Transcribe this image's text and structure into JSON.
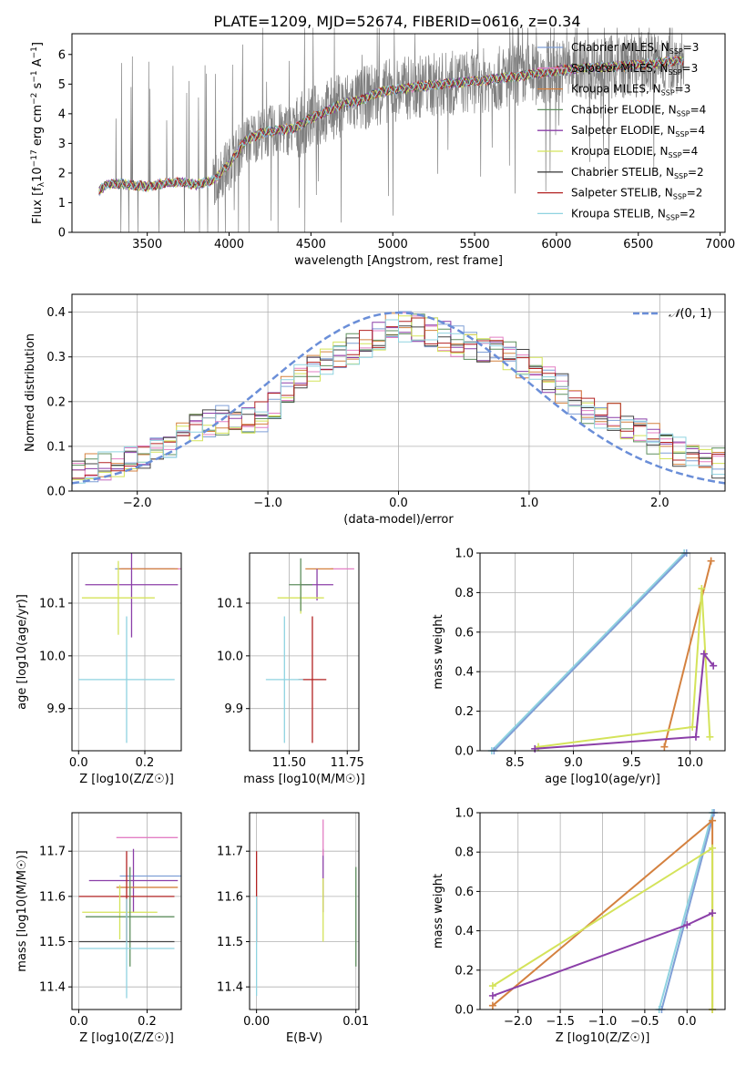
{
  "figure": {
    "title": "PLATE=1209, MJD=52674, FIBERID=0616, z=0.34"
  },
  "chart_data": [
    {
      "id": "spectrum",
      "type": "line",
      "xlabel": "wavelength [Angstrom, rest frame]",
      "ylabel": "Flux [f_λ 10^-17 erg cm^-2 s^-1 A^-1]",
      "xlim": [
        3040,
        7030
      ],
      "ylim": [
        0,
        6.7
      ],
      "xticks": [
        3500,
        4000,
        4500,
        5000,
        5500,
        6000,
        6500,
        7000
      ],
      "yticks": [
        0,
        1,
        2,
        3,
        4,
        5,
        6
      ],
      "grid": false,
      "legend_position": "top-right",
      "data_wavelength_range": [
        3205,
        6780
      ],
      "continuum": {
        "x": [
          3205,
          3250,
          3300,
          3400,
          3500,
          3600,
          3700,
          3800,
          3900,
          4000,
          4100,
          4200,
          4300,
          4400,
          4500,
          4600,
          4700,
          4800,
          4900,
          5000,
          5200,
          5400,
          5600,
          5800,
          6000,
          6200,
          6400,
          6600,
          6780
        ],
        "y": [
          1.4,
          1.6,
          1.65,
          1.6,
          1.55,
          1.65,
          1.7,
          1.6,
          1.75,
          2.3,
          3.1,
          3.35,
          3.45,
          3.5,
          3.85,
          4.1,
          4.35,
          4.45,
          4.7,
          4.8,
          4.95,
          5.05,
          5.15,
          5.3,
          5.45,
          5.55,
          5.6,
          5.7,
          5.8
        ]
      },
      "series": [
        {
          "name": "Chabrier MILES, N_SSP=3",
          "color": "#7f9fd6"
        },
        {
          "name": "Salpeter MILES, N_SSP=3",
          "color": "#e37fc4"
        },
        {
          "name": "Kroupa MILES, N_SSP=3",
          "color": "#d4813f"
        },
        {
          "name": "Chabrier ELODIE, N_SSP=4",
          "color": "#5f8f5f"
        },
        {
          "name": "Salpeter ELODIE, N_SSP=4",
          "color": "#8b3fa8"
        },
        {
          "name": "Kroupa ELODIE, N_SSP=4",
          "color": "#d4e35a"
        },
        {
          "name": "Chabrier STELIB, N_SSP=2",
          "color": "#444444"
        },
        {
          "name": "Salpeter STELIB, N_SSP=2",
          "color": "#b22222"
        },
        {
          "name": "Kroupa STELIB, N_SSP=2",
          "color": "#8fd3e0"
        }
      ],
      "legend": [
        {
          "label": "Chabrier MILES, N",
          "sub": "SSP",
          "tail": "=3"
        },
        {
          "label": "Salpeter MILES, N",
          "sub": "SSP",
          "tail": "=3"
        },
        {
          "label": "Kroupa MILES, N",
          "sub": "SSP",
          "tail": "=3"
        },
        {
          "label": "Chabrier ELODIE, N",
          "sub": "SSP",
          "tail": "=4"
        },
        {
          "label": "Salpeter ELODIE, N",
          "sub": "SSP",
          "tail": "=4"
        },
        {
          "label": "Kroupa ELODIE, N",
          "sub": "SSP",
          "tail": "=4"
        },
        {
          "label": "Chabrier STELIB, N",
          "sub": "SSP",
          "tail": "=2"
        },
        {
          "label": "Salpeter STELIB, N",
          "sub": "SSP",
          "tail": "=2"
        },
        {
          "label": "Kroupa STELIB, N",
          "sub": "SSP",
          "tail": "=2"
        }
      ]
    },
    {
      "id": "residuals",
      "type": "line",
      "xlabel": "(data-model)/error",
      "ylabel": "Normed distribution",
      "xlim": [
        -2.5,
        2.5
      ],
      "ylim": [
        0,
        0.44
      ],
      "xticks": [
        -2,
        -1,
        0,
        1,
        2
      ],
      "yticks": [
        0.0,
        0.1,
        0.2,
        0.3,
        0.4
      ],
      "grid": true,
      "legend_position": "top-right",
      "legend_label": "N(0,1)",
      "normal_curve_color": "#6a8ed8",
      "bin_width": 0.1,
      "histogram_envelope": {
        "x": [
          -2.5,
          -2.2,
          -2.0,
          -1.8,
          -1.6,
          -1.4,
          -1.2,
          -1.0,
          -0.8,
          -0.6,
          -0.4,
          -0.2,
          0.0,
          0.2,
          0.4,
          0.6,
          0.8,
          1.0,
          1.2,
          1.4,
          1.6,
          1.8,
          2.0,
          2.2,
          2.5
        ],
        "y": [
          0.04,
          0.06,
          0.07,
          0.1,
          0.13,
          0.16,
          0.16,
          0.17,
          0.24,
          0.28,
          0.31,
          0.34,
          0.37,
          0.36,
          0.34,
          0.32,
          0.31,
          0.28,
          0.24,
          0.19,
          0.17,
          0.14,
          0.11,
          0.08,
          0.06
        ]
      }
    },
    {
      "id": "age-vs-Z",
      "type": "scatter",
      "xlabel": "Z [log10(Z/Z☉)]",
      "ylabel": "age [log10(age/yr)]",
      "xlim": [
        -0.02,
        0.31
      ],
      "ylim": [
        9.82,
        10.195
      ],
      "xticks": [
        0.0,
        0.2
      ],
      "yticks": [
        9.9,
        10.0,
        10.1
      ],
      "grid": true,
      "points": [
        {
          "series": 0,
          "x": 0.2,
          "xerr": 0.09,
          "y": 10.165,
          "yerr": 0.0
        },
        {
          "series": 1,
          "x": 0.22,
          "xerr": 0.09,
          "y": 10.165,
          "yerr": 0.0
        },
        {
          "series": 2,
          "x": 0.21,
          "xerr": 0.09,
          "y": 10.165,
          "yerr": 0.0
        },
        {
          "series": 4,
          "x": 0.16,
          "xerr": 0.14,
          "y": 10.135,
          "yerr": 0.1
        },
        {
          "series": 5,
          "x": 0.12,
          "xerr": 0.11,
          "y": 10.11,
          "yerr": 0.07
        },
        {
          "series": 8,
          "x": 0.145,
          "xerr": 0.145,
          "y": 9.955,
          "yerr": 0.12
        }
      ]
    },
    {
      "id": "age-vs-mass",
      "type": "scatter",
      "xlabel": "mass [log10(M/M☉)]",
      "ylabel": "",
      "xlim": [
        11.33,
        11.8
      ],
      "ylim": [
        9.82,
        10.195
      ],
      "xticks": [
        11.5,
        11.75
      ],
      "yticks": [
        9.9,
        10.0,
        10.1
      ],
      "grid": true,
      "points": [
        {
          "series": 1,
          "x": 11.73,
          "xerr": 0.05,
          "y": 10.165,
          "yerr": 0.0
        },
        {
          "series": 2,
          "x": 11.63,
          "xerr": 0.06,
          "y": 10.165,
          "yerr": 0.0
        },
        {
          "series": 4,
          "x": 11.62,
          "xerr": 0.07,
          "y": 10.135,
          "yerr": 0.03
        },
        {
          "series": 5,
          "x": 11.55,
          "xerr": 0.1,
          "y": 10.11,
          "yerr": 0.03
        },
        {
          "series": 3,
          "x": 11.55,
          "xerr": 0.05,
          "y": 10.135,
          "yerr": 0.05
        },
        {
          "series": 7,
          "x": 11.6,
          "xerr": 0.06,
          "y": 9.955,
          "yerr": 0.12
        },
        {
          "series": 8,
          "x": 11.48,
          "xerr": 0.08,
          "y": 9.955,
          "yerr": 0.12
        }
      ]
    },
    {
      "id": "mass-weight-vs-age",
      "type": "line",
      "xlabel": "age [log10(age/yr)]",
      "ylabel": "mass weight",
      "xlim": [
        8.2,
        10.3
      ],
      "ylim": [
        0,
        1.0
      ],
      "xticks": [
        8.5,
        9.0,
        9.5,
        10.0
      ],
      "yticks": [
        0.0,
        0.2,
        0.4,
        0.6,
        0.8,
        1.0
      ],
      "grid": true,
      "lines": [
        {
          "series": 8,
          "x": [
            8.3,
            9.95
          ],
          "y": [
            0.0,
            1.0
          ]
        },
        {
          "series": 0,
          "x": [
            8.32,
            9.97
          ],
          "y": [
            0.0,
            1.0
          ]
        },
        {
          "series": 2,
          "x": [
            9.78,
            10.18
          ],
          "y": [
            0.02,
            0.96
          ]
        },
        {
          "series": 5,
          "x": [
            8.7,
            10.02,
            10.1,
            10.17
          ],
          "y": [
            0.02,
            0.12,
            0.82,
            0.07
          ]
        },
        {
          "series": 4,
          "x": [
            8.67,
            10.05,
            10.12,
            10.2
          ],
          "y": [
            0.01,
            0.07,
            0.49,
            0.43
          ]
        }
      ]
    },
    {
      "id": "mass-vs-Z",
      "type": "scatter",
      "xlabel": "Z [log10(Z/Z☉)]",
      "ylabel": "mass [log10(M/M☉)]",
      "xlim": [
        -0.02,
        0.3
      ],
      "ylim": [
        11.35,
        11.785
      ],
      "xticks": [
        0.0,
        0.2
      ],
      "yticks": [
        11.4,
        11.5,
        11.6,
        11.7
      ],
      "grid": true,
      "points": [
        {
          "series": 1,
          "x": 0.2,
          "xerr": 0.09,
          "y": 11.73,
          "yerr": 0.0
        },
        {
          "series": 0,
          "x": 0.21,
          "xerr": 0.09,
          "y": 11.645,
          "yerr": 0.0
        },
        {
          "series": 4,
          "x": 0.16,
          "xerr": 0.13,
          "y": 11.635,
          "yerr": 0.07
        },
        {
          "series": 2,
          "x": 0.2,
          "xerr": 0.09,
          "y": 11.62,
          "yerr": 0.0
        },
        {
          "series": 7,
          "x": 0.14,
          "xerr": 0.14,
          "y": 11.6,
          "yerr": 0.1
        },
        {
          "series": 5,
          "x": 0.12,
          "xerr": 0.11,
          "y": 11.565,
          "yerr": 0.06
        },
        {
          "series": 3,
          "x": 0.15,
          "xerr": 0.13,
          "y": 11.555,
          "yerr": 0.11
        },
        {
          "series": 6,
          "x": 0.14,
          "xerr": 0.14,
          "y": 11.5,
          "yerr": 0.0
        },
        {
          "series": 8,
          "x": 0.14,
          "xerr": 0.14,
          "y": 11.485,
          "yerr": 0.11
        }
      ]
    },
    {
      "id": "mass-vs-EBV",
      "type": "scatter",
      "xlabel": "E(B-V)",
      "ylabel": "",
      "xlim": [
        -0.0007,
        0.0103
      ],
      "ylim": [
        11.35,
        11.785
      ],
      "xticks": [
        0.0,
        0.01
      ],
      "yticks": [
        11.4,
        11.5,
        11.6,
        11.7
      ],
      "grid": true,
      "points": [
        {
          "series": 7,
          "x": 0.0,
          "xerr": 0.0,
          "y": 11.6,
          "yerr": 0.1
        },
        {
          "series": 8,
          "x": 0.0,
          "xerr": 0.0,
          "y": 11.49,
          "yerr": 0.11
        },
        {
          "series": 4,
          "x": 0.0067,
          "xerr": 0.0,
          "y": 11.635,
          "yerr": 0.07
        },
        {
          "series": 5,
          "x": 0.0067,
          "xerr": 0.0,
          "y": 11.57,
          "yerr": 0.07
        },
        {
          "series": 3,
          "x": 0.01,
          "xerr": 0.0,
          "y": 11.555,
          "yerr": 0.11
        },
        {
          "series": 1,
          "x": 0.0067,
          "xerr": 0.0,
          "y": 11.73,
          "yerr": 0.04
        }
      ]
    },
    {
      "id": "mass-weight-vs-Z",
      "type": "line",
      "xlabel": "Z [log10(Z/Z☉)]",
      "ylabel": "mass weight",
      "xlim": [
        -2.45,
        0.45
      ],
      "ylim": [
        0,
        1.0
      ],
      "xticks": [
        -2.0,
        -1.5,
        -1.0,
        -0.5,
        0.0
      ],
      "yticks": [
        0.0,
        0.2,
        0.4,
        0.6,
        0.8,
        1.0
      ],
      "grid": true,
      "lines": [
        {
          "series": 8,
          "x": [
            -0.33,
            0.3
          ],
          "y": [
            0.0,
            1.0
          ]
        },
        {
          "series": 0,
          "x": [
            -0.3,
            0.32
          ],
          "y": [
            0.0,
            1.0
          ]
        },
        {
          "series": 2,
          "x": [
            -2.3,
            0.3,
            0.3
          ],
          "y": [
            0.02,
            0.96,
            0.0
          ]
        },
        {
          "series": 5,
          "x": [
            -2.3,
            0.3,
            0.3
          ],
          "y": [
            0.12,
            0.82,
            0.0
          ]
        },
        {
          "series": 4,
          "x": [
            -2.3,
            0.0,
            0.3
          ],
          "y": [
            0.07,
            0.43,
            0.49
          ]
        }
      ]
    }
  ]
}
